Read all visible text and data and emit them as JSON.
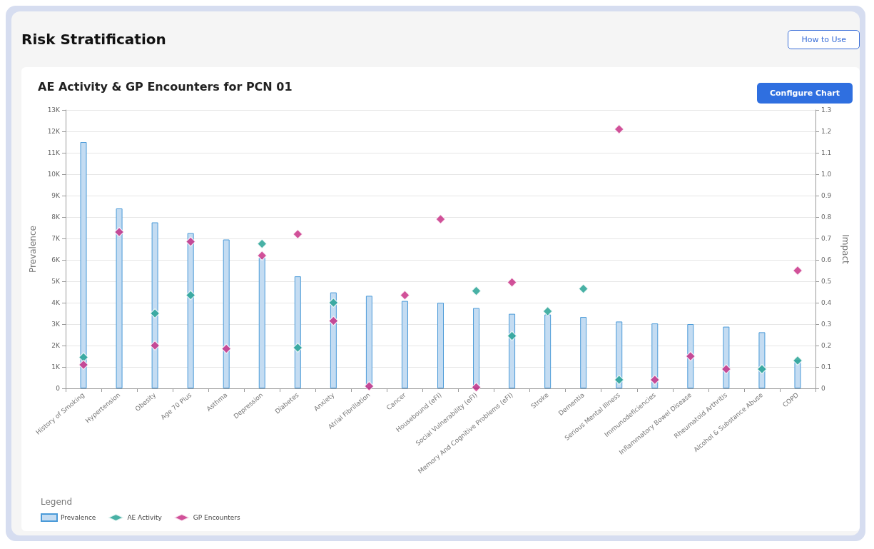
{
  "chart_data": {
    "type": "bar",
    "title": "AE Activity & GP Encounters for PCN 01",
    "ylabel": "Prevalence",
    "y2label": "Impact",
    "legend_title": "Legend",
    "annotations": [
      "Risk Stratification",
      "How to Use",
      "Configure Chart"
    ],
    "categories": [
      "History of Smoking",
      "Hypertension",
      "Obesity",
      "Age 70 Plus",
      "Asthma",
      "Depression",
      "Diabetes",
      "Anxiety",
      "Atrial Fibrillation",
      "Cancer",
      "Housebound (eFI)",
      "Social Vulnerability (eFI)",
      "Memory And Cognitive Problems (eFI)",
      "Stroke",
      "Dementia",
      "Serious Mental Illness",
      "Immunodeficiencies",
      "Inflammatory Bowel Disease",
      "Rheumatoid Arthritis",
      "Alcohol & Substance Abuse",
      "COPD"
    ],
    "series": [
      {
        "name": "Prevalence",
        "color": "#c4dcf2",
        "values": [
          11500,
          8400,
          7750,
          7250,
          6950,
          6100,
          5230,
          4480,
          4320,
          4080,
          4000,
          3750,
          3480,
          3450,
          3330,
          3120,
          3030,
          3000,
          2880,
          2620,
          1300
        ]
      },
      {
        "name": "AE Activity",
        "type": "scatter",
        "axis": "y2",
        "color": "#1a9e8f",
        "marker": "diamond",
        "values": [
          0.145,
          null,
          0.35,
          0.435,
          null,
          0.675,
          0.19,
          0.4,
          null,
          null,
          null,
          0.455,
          0.245,
          0.36,
          0.465,
          0.04,
          null,
          null,
          null,
          0.09,
          0.13
        ]
      },
      {
        "name": "GP Encounters",
        "type": "scatter",
        "axis": "y2",
        "color": "#c6267f",
        "marker": "diamond",
        "values": [
          0.11,
          0.73,
          0.2,
          0.685,
          0.185,
          0.62,
          0.72,
          0.315,
          0.01,
          0.435,
          0.79,
          0.005,
          0.495,
          null,
          null,
          1.21,
          0.04,
          0.15,
          0.09,
          null,
          0.55
        ]
      }
    ],
    "ylim": [
      0,
      13000
    ],
    "yticks": [
      0,
      {
        "value": 1000,
        "label": "1K"
      },
      {
        "value": 2000,
        "label": "2K"
      },
      {
        "value": 3000,
        "label": "3K"
      },
      {
        "value": 4000,
        "label": "4K"
      },
      {
        "value": 5000,
        "label": "5K"
      },
      {
        "value": 6000,
        "label": "6K"
      },
      {
        "value": 7000,
        "label": "7K"
      },
      {
        "value": 8000,
        "label": "8K"
      },
      {
        "value": 9000,
        "label": "9K"
      },
      {
        "value": 10000,
        "label": "10K"
      },
      {
        "value": 11000,
        "label": "11K"
      },
      {
        "value": 12000,
        "label": "12K"
      },
      {
        "value": 13000,
        "label": "13K"
      }
    ],
    "y2lim": [
      0,
      1.3
    ],
    "y2ticks": [
      0,
      0.1,
      0.2,
      0.3,
      0.4,
      0.5,
      0.6,
      0.7,
      0.8,
      0.9,
      {
        "value": 1,
        "label": "1.0"
      },
      1.1,
      1.2,
      1.3
    ],
    "grid": "y",
    "legend": "bottom left"
  }
}
